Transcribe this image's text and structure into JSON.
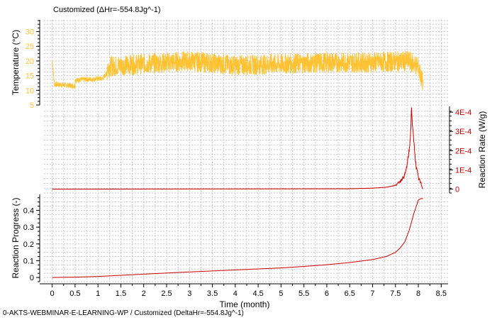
{
  "chart_data": {
    "type": "line",
    "title": "Customized (ΔHr=-554.8Jg^-1)",
    "footer": "0-AKTS-WEBMINAR-E-LEARNING-WP / Customized (DeltaHr=-554.8Jg^-1)",
    "xlabel": "Time (month)",
    "x_ticks": [
      "0",
      "0.5",
      "1",
      "1.5",
      "2",
      "2.5",
      "3",
      "3.5",
      "4",
      "4.5",
      "5",
      "5.5",
      "6",
      "6.5",
      "7",
      "7.5",
      "8",
      "8.5"
    ],
    "xlim": [
      -0.18,
      8.65
    ],
    "grid": true,
    "colors": {
      "temperature": "#ffc233",
      "rate": "#cc0000",
      "progress": "#cc0000"
    },
    "panels": [
      {
        "id": "temperature",
        "ylabel": "Temperature (°C)",
        "ylabel_side": "left",
        "ylim": [
          5,
          34
        ],
        "y_ticks": [
          "5",
          "10",
          "15",
          "20",
          "25",
          "30"
        ],
        "tick_color": "#ffc233",
        "series": [
          {
            "key": "temperature",
            "segments": [
              {
                "x": [
                  0.0,
                  0.03,
                  0.05,
                  0.1,
                  0.5
                ],
                "y": [
                  20,
                  15,
                  12,
                  12,
                  11.5
                ]
              },
              {
                "x": [
                  0.5,
                  1.1,
                  1.2
                ],
                "y": [
                  13.5,
                  14,
                  16
                ]
              },
              {
                "x": [
                  1.2,
                  1.5,
                  3.0,
                  4.0,
                  5.0,
                  6.0,
                  7.0,
                  7.8,
                  8.0,
                  8.05,
                  8.1
                ],
                "y": [
                  18,
                  18.5,
                  20,
                  18.5,
                  19,
                  19.5,
                  19.5,
                  20,
                  18,
                  15,
                  12
                ]
              }
            ],
            "noise_amplitude": 3.5
          }
        ]
      },
      {
        "id": "rate",
        "ylabel": "Reaction Rate (W/g)",
        "ylabel_side": "right",
        "ylim": [
          -2e-05,
          0.00043
        ],
        "y_ticks": [
          "0",
          "1E-4",
          "2E-4",
          "3E-4",
          "4E-4"
        ],
        "tick_color": "#cc0000",
        "series": [
          {
            "key": "rate",
            "x": [
              0,
              6.5,
              7.0,
              7.3,
              7.5,
              7.6,
              7.7,
              7.75,
              7.8,
              7.83,
              7.85,
              7.87,
              7.9,
              7.95,
              8.0,
              8.05,
              8.1
            ],
            "y": [
              0,
              2e-06,
              5e-06,
              1e-05,
              2e-05,
              4e-05,
              7e-05,
              0.00012,
              0.0002,
              0.00028,
              0.00043,
              0.00033,
              0.00025,
              0.00012,
              6e-05,
              3e-05,
              1e-05
            ],
            "noise_amplitude": 1.2e-05
          }
        ]
      },
      {
        "id": "progress",
        "ylabel": "Reaction Progress (-)",
        "ylabel_side": "left",
        "ylim": [
          -0.025,
          0.495
        ],
        "y_ticks": [
          "0",
          "0.1",
          "0.2",
          "0.3",
          "0.4"
        ],
        "tick_color": "#000000",
        "series": [
          {
            "key": "progress",
            "x": [
              0,
              0.5,
              1,
              2,
              3,
              4,
              5,
              5.5,
              6,
              6.5,
              7,
              7.3,
              7.5,
              7.6,
              7.7,
              7.8,
              7.9,
              8.0,
              8.05,
              8.1
            ],
            "y": [
              0,
              0.002,
              0.006,
              0.02,
              0.033,
              0.045,
              0.057,
              0.066,
              0.076,
              0.089,
              0.107,
              0.125,
              0.15,
              0.175,
              0.21,
              0.28,
              0.38,
              0.46,
              0.47,
              0.47
            ]
          }
        ]
      }
    ]
  }
}
